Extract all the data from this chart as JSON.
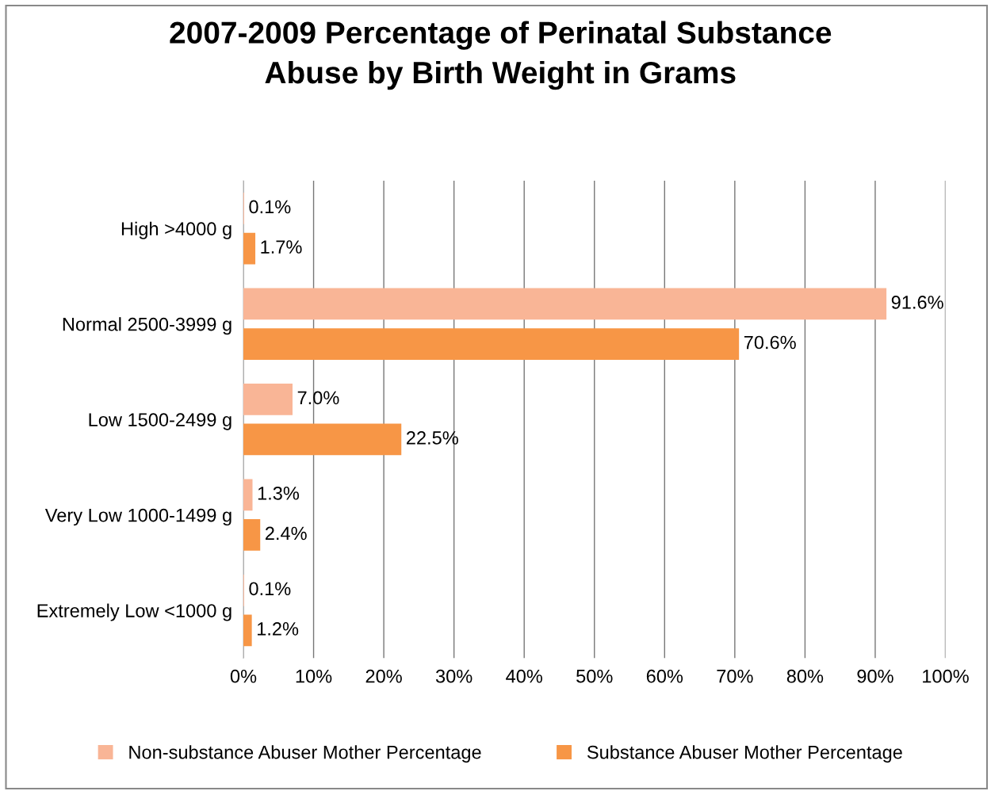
{
  "chart_data": {
    "type": "bar",
    "orientation": "horizontal",
    "title": "2007-2009 Percentage of Perinatal Substance\nAbuse by Birth Weight in Grams",
    "categories": [
      "High >4000 g",
      "Normal 2500-3999 g",
      "Low 1500-2499 g",
      "Very Low 1000-1499 g",
      "Extremely Low <1000 g"
    ],
    "series": [
      {
        "name": "Non-substance Abuser Mother Percentage",
        "color": "#f9b596",
        "values": [
          0.1,
          91.6,
          7.0,
          1.3,
          0.1
        ],
        "value_labels": [
          "0.1%",
          "91.6%",
          "7.0%",
          "1.3%",
          "0.1%"
        ]
      },
      {
        "name": "Substance Abuser Mother Percentage",
        "color": "#f79646",
        "values": [
          1.7,
          70.6,
          22.5,
          2.4,
          1.2
        ],
        "value_labels": [
          "1.7%",
          "70.6%",
          "22.5%",
          "2.4%",
          "1.2%"
        ]
      }
    ],
    "xlim": [
      0,
      100
    ],
    "xticks": [
      {
        "value": 0,
        "label": "0%"
      },
      {
        "value": 10,
        "label": "10%"
      },
      {
        "value": 20,
        "label": "20%"
      },
      {
        "value": 30,
        "label": "30%"
      },
      {
        "value": 40,
        "label": "40%"
      },
      {
        "value": 50,
        "label": "50%"
      },
      {
        "value": 60,
        "label": "60%"
      },
      {
        "value": 70,
        "label": "70%"
      },
      {
        "value": 80,
        "label": "80%"
      },
      {
        "value": 90,
        "label": "90%"
      },
      {
        "value": 100,
        "label": "100%"
      }
    ],
    "grid": "x",
    "legend": "bottom"
  }
}
